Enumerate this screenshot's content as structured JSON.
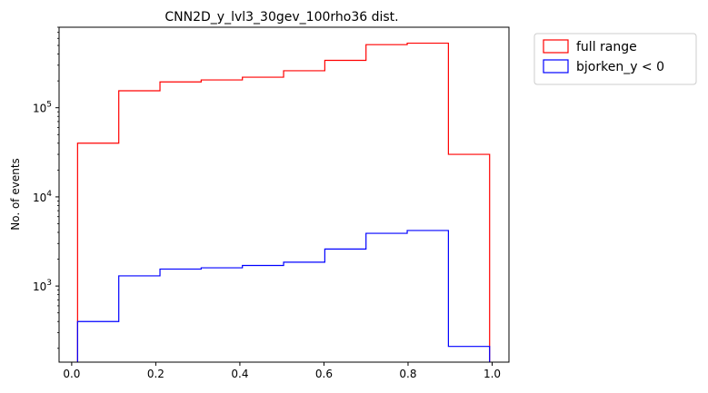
{
  "chart_data": {
    "type": "histogram-step",
    "title": "CNN2D_y_lvl3_30gev_100rho36 dist.",
    "xlabel": "",
    "ylabel": "No. of events",
    "yscale": "log",
    "xlim": [
      -0.03,
      1.04
    ],
    "ylim": [
      140,
      800000
    ],
    "x_ticks": [
      0.0,
      0.2,
      0.4,
      0.6,
      0.8,
      1.0
    ],
    "x_tick_labels": [
      "0.0",
      "0.2",
      "0.4",
      "0.6",
      "0.8",
      "1.0"
    ],
    "y_ticks": [
      1000,
      10000,
      100000
    ],
    "y_tick_labels": [
      {
        "base": "10",
        "exp": "3"
      },
      {
        "base": "10",
        "exp": "4"
      },
      {
        "base": "10",
        "exp": "5"
      }
    ],
    "bin_edges": [
      0.014,
      0.112,
      0.21,
      0.308,
      0.406,
      0.504,
      0.602,
      0.7,
      0.798,
      0.896,
      0.994
    ],
    "series": [
      {
        "name": "full range",
        "color": "#ff0000",
        "values": [
          40000,
          155000,
          195000,
          205000,
          220000,
          260000,
          340000,
          510000,
          530000,
          30000
        ]
      },
      {
        "name": "bjorken_y < 0",
        "color": "#0000ff",
        "values": [
          400,
          1300,
          1550,
          1600,
          1700,
          1850,
          2600,
          3900,
          4200,
          210
        ]
      }
    ],
    "legend_position": "outside-top-right",
    "grid": false
  }
}
